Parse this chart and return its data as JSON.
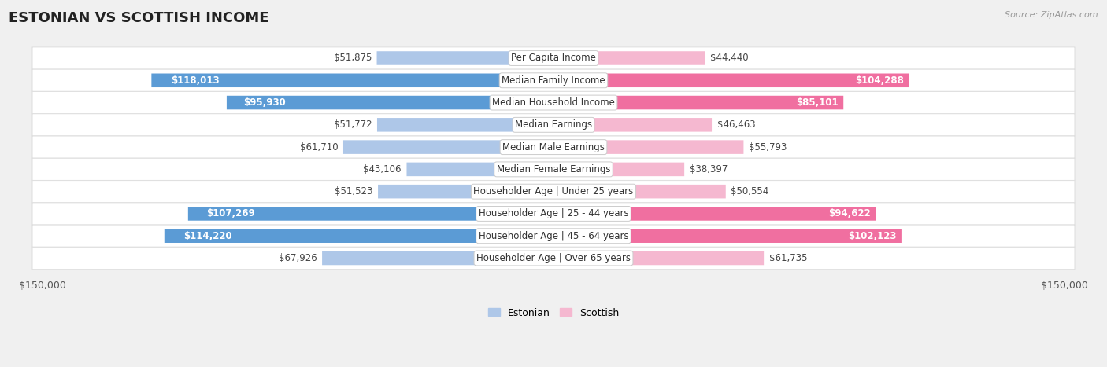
{
  "title": "ESTONIAN VS SCOTTISH INCOME",
  "source": "Source: ZipAtlas.com",
  "categories": [
    "Per Capita Income",
    "Median Family Income",
    "Median Household Income",
    "Median Earnings",
    "Median Male Earnings",
    "Median Female Earnings",
    "Householder Age | Under 25 years",
    "Householder Age | 25 - 44 years",
    "Householder Age | 45 - 64 years",
    "Householder Age | Over 65 years"
  ],
  "estonian_values": [
    51875,
    118013,
    95930,
    51772,
    61710,
    43106,
    51523,
    107269,
    114220,
    67926
  ],
  "scottish_values": [
    44440,
    104288,
    85101,
    46463,
    55793,
    38397,
    50554,
    94622,
    102123,
    61735
  ],
  "estonian_labels": [
    "$51,875",
    "$118,013",
    "$95,930",
    "$51,772",
    "$61,710",
    "$43,106",
    "$51,523",
    "$107,269",
    "$114,220",
    "$67,926"
  ],
  "scottish_labels": [
    "$44,440",
    "$104,288",
    "$85,101",
    "$46,463",
    "$55,793",
    "$38,397",
    "$50,554",
    "$94,622",
    "$102,123",
    "$61,735"
  ],
  "max_value": 150000,
  "estonian_color_dark": "#5b9bd5",
  "estonian_color_light": "#aec7e8",
  "scottish_color_dark": "#f06fa0",
  "scottish_color_light": "#f5b8d0",
  "background_color": "#f0f0f0",
  "row_bg_color": "#ffffff",
  "title_fontsize": 13,
  "label_fontsize": 8.5,
  "axis_label_fontsize": 9,
  "legend_fontsize": 9,
  "dark_threshold": 75000
}
